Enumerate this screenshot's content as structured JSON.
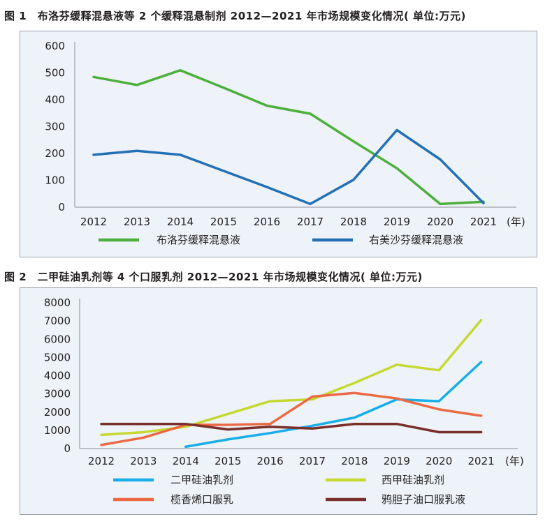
{
  "figures": [
    {
      "title": "图 1　布洛芬缓释混悬液等 2 个缓释混悬制剂 2012—2021 年市场规模变化情况( 单位:万元)",
      "x_unit": "(年)",
      "legend": [
        "布洛芬缓释混悬液",
        "右美沙芬缓释混悬液"
      ]
    },
    {
      "title": "图 2　二甲硅油乳剂等 4 个口服乳剂 2012—2021 年市场规模变化情况( 单位:万元)",
      "x_unit": "(年)",
      "legend": [
        "二甲硅油乳剂",
        "西甲硅油乳剂",
        "榄香烯口服乳",
        "鸦胆子油口服乳液"
      ]
    }
  ],
  "chart_data": [
    {
      "type": "line",
      "title": "图 1　布洛芬缓释混悬液等 2 个缓释混悬制剂 2012—2021 年市场规模变化情况( 单位:万元)",
      "xlabel": "(年)",
      "ylabel": "",
      "categories": [
        "2012",
        "2013",
        "2014",
        "2015",
        "2016",
        "2017",
        "2018",
        "2019",
        "2020",
        "2021"
      ],
      "ylim": [
        0,
        600
      ],
      "yticks": [
        0,
        100,
        200,
        300,
        400,
        500,
        600
      ],
      "grid": false,
      "legend_position": "bottom",
      "series": [
        {
          "name": "布洛芬缓释混悬液",
          "color": "#4daf3c",
          "values": [
            485,
            455,
            510,
            445,
            378,
            348,
            245,
            145,
            12,
            20
          ]
        },
        {
          "name": "右美沙芬缓释混悬液",
          "color": "#2370b4",
          "values": [
            195,
            210,
            195,
            135,
            75,
            12,
            102,
            287,
            178,
            15
          ]
        }
      ]
    },
    {
      "type": "line",
      "title": "图 2　二甲硅油乳剂等 4 个口服乳剂 2012—2021 年市场规模变化情况( 单位:万元)",
      "xlabel": "(年)",
      "ylabel": "",
      "categories": [
        "2012",
        "2013",
        "2014",
        "2015",
        "2016",
        "2017",
        "2018",
        "2019",
        "2020",
        "2021"
      ],
      "ylim": [
        0,
        8000
      ],
      "yticks": [
        0,
        1000,
        2000,
        3000,
        4000,
        5000,
        6000,
        7000,
        8000
      ],
      "grid": false,
      "legend_position": "bottom",
      "series": [
        {
          "name": "二甲硅油乳剂",
          "color": "#19aee6",
          "values": [
            null,
            null,
            100,
            500,
            850,
            1250,
            1700,
            2700,
            2600,
            4750
          ]
        },
        {
          "name": "西甲硅油乳剂",
          "color": "#c5d931",
          "values": [
            750,
            900,
            1200,
            1900,
            2600,
            2700,
            3600,
            4600,
            4300,
            7050
          ]
        },
        {
          "name": "榄香烯口服乳",
          "color": "#eb6a44",
          "values": [
            200,
            600,
            1300,
            1300,
            1350,
            2850,
            3050,
            2750,
            2150,
            1800
          ]
        },
        {
          "name": "鸦胆子油口服乳液",
          "color": "#7a2f2a",
          "values": [
            1350,
            1350,
            1350,
            1050,
            1200,
            1100,
            1350,
            1350,
            900,
            900
          ]
        }
      ]
    }
  ]
}
